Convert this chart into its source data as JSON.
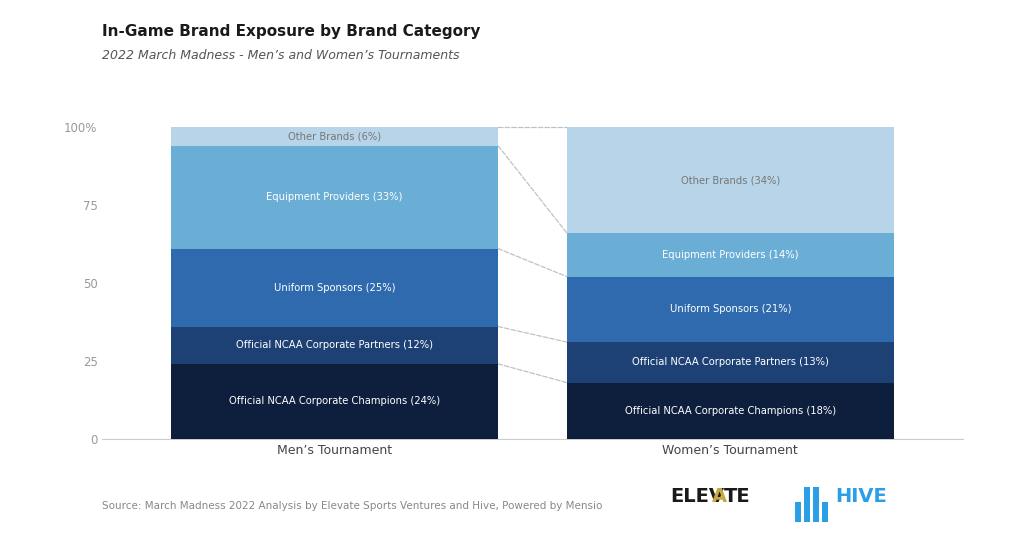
{
  "title": "In-Game Brand Exposure by Brand Category",
  "subtitle": "2022 March Madness - Men’s and Women’s Tournaments",
  "source": "Source: March Madness 2022 Analysis by Elevate Sports Ventures and Hive, Powered by Mensio",
  "categories": [
    "Men’s Tournament",
    "Women’s Tournament"
  ],
  "segments": [
    {
      "label": "Official NCAA Corporate Champions",
      "men_pct": 24,
      "women_pct": 18,
      "color": "#0d1f3c"
    },
    {
      "label": "Official NCAA Corporate Partners",
      "men_pct": 12,
      "women_pct": 13,
      "color": "#1e4175"
    },
    {
      "label": "Uniform Sponsors",
      "men_pct": 25,
      "women_pct": 21,
      "color": "#2e6aad"
    },
    {
      "label": "Equipment Providers",
      "men_pct": 33,
      "women_pct": 14,
      "color": "#6aaed6"
    },
    {
      "label": "Other Brands",
      "men_pct": 6,
      "women_pct": 34,
      "color": "#b8d4e8"
    }
  ],
  "bg_color": "#ffffff",
  "text_color_dark": "#444444",
  "text_color_light": "#ffffff",
  "text_color_gray": "#999999",
  "connector_color": "#bbbbbb",
  "yticks": [
    0,
    25,
    50,
    75,
    100
  ],
  "ytick_labels": [
    "0",
    "25",
    "50",
    "75",
    "100%"
  ],
  "elevate_color": "#1a1a1a",
  "hive_color": "#2b9fe6",
  "elevate_v_color": "#c9a840"
}
